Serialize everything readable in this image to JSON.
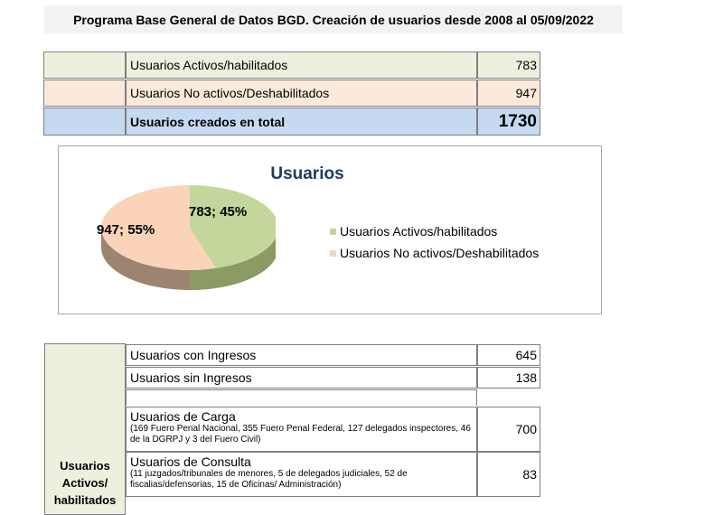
{
  "title": "Programa Base General de Datos BGD. Creación de usuarios desde 2008 al 05/09/2022",
  "summary": {
    "rows": [
      {
        "label": "Usuarios Activos/habilitados",
        "value": "783"
      },
      {
        "label": "Usuarios No activos/Deshabilitados",
        "value": "947"
      },
      {
        "label": "Usuarios creados en total",
        "value": "1730"
      }
    ]
  },
  "chart_data": {
    "type": "pie",
    "title": "Usuarios",
    "categories": [
      "Usuarios Activos/habilitados",
      "Usuarios No activos/Deshabilitados"
    ],
    "values": [
      783,
      947
    ],
    "data_labels": [
      "783; 45%",
      "947; 55%"
    ],
    "colors": [
      "#c3d69b",
      "#fad3b8"
    ],
    "legend_position": "right"
  },
  "detail": {
    "side_label": "Usuarios Activos/ habilitados",
    "rows": [
      {
        "label": "Usuarios con Ingresos",
        "value": "645"
      },
      {
        "label": "Usuarios sin Ingresos",
        "value": "138"
      },
      {
        "label": "Usuarios de Carga",
        "note": "(169 Fuero Penal Nacional, 355 Fuero Penal Federal, 127 delegados inspectores, 46 de la DGRPJ  y 3 del Fuero Civil)",
        "value": "700"
      },
      {
        "label": "Usuarios de Consulta",
        "note": "(11 juzgados/tribunales de menores, 5 de delegados judiciales, 52 de fiscalias/defensorias, 15 de Oficinas/ Administración)",
        "value": "83"
      }
    ]
  }
}
